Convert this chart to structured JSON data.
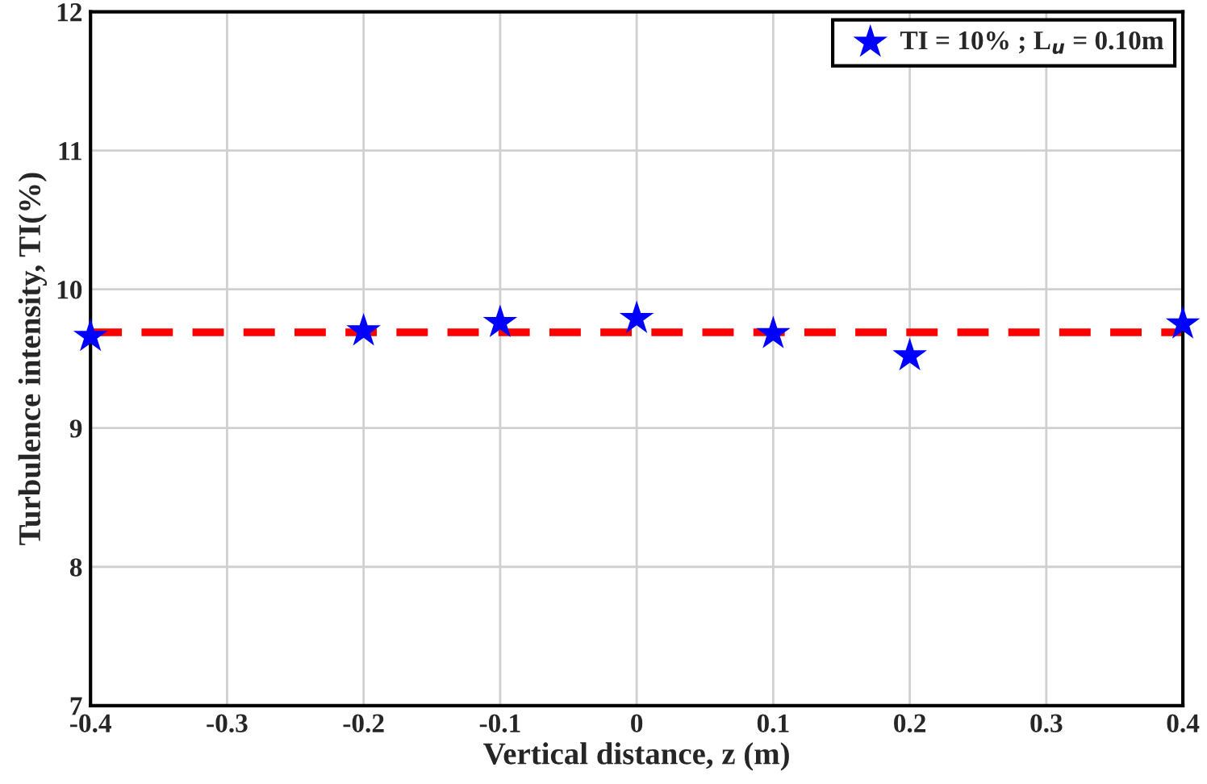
{
  "chart_data": {
    "type": "scatter",
    "xlabel": "Vertical distance, z (m)",
    "ylabel": "Turbulence intensity, TI(%)",
    "x": [
      -0.4,
      -0.2,
      -0.1,
      0,
      0.1,
      0.2,
      0.4
    ],
    "series": [
      {
        "name": "TI = 10% ; L$_{u}$ = 0.10m",
        "color": "#0000ff",
        "values": [
          9.66,
          9.7,
          9.76,
          9.79,
          9.68,
          9.52,
          9.75
        ]
      }
    ],
    "marker": "star",
    "ref_lines": [
      {
        "axis": "y",
        "value": 9.69,
        "color": "#ff0000",
        "line_style": "dashed"
      }
    ],
    "xlim": [
      -0.4,
      0.4
    ],
    "xticks": [
      -0.4,
      -0.3,
      -0.2,
      -0.1,
      0,
      0.1,
      0.2,
      0.3,
      0.4
    ],
    "ylim": [
      7,
      12
    ],
    "yticks": [
      7,
      8,
      9,
      10,
      11,
      12
    ],
    "grid": true,
    "legend": "top right"
  }
}
